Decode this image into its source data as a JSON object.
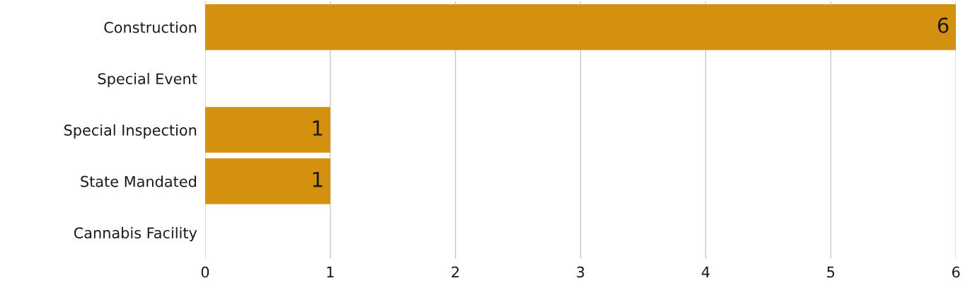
{
  "chart_data": {
    "type": "bar",
    "orientation": "horizontal",
    "categories": [
      "Construction",
      "Special Event",
      "Special Inspection",
      "State Mandated",
      "Cannabis Facility"
    ],
    "values": [
      6,
      0,
      1,
      1,
      0
    ],
    "value_labels": [
      "6",
      null,
      "1",
      "1",
      null
    ],
    "color": "#d4900f",
    "xlim": [
      0,
      6
    ],
    "xticks": [
      0,
      1,
      2,
      3,
      4,
      5,
      6
    ],
    "grid": "x",
    "legend": false
  }
}
